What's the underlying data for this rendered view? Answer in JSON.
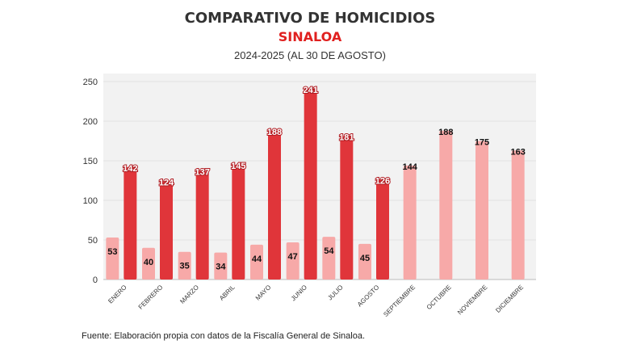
{
  "header": {
    "title": "COMPARATIVO DE HOMICIDIOS",
    "subtitle": "SINALOA",
    "period": "2024-2025 (AL 30 DE AGOSTO)"
  },
  "footer": {
    "source": "Fuente: Elaboración propia con datos de la Fiscalía General de Sinaloa."
  },
  "colors": {
    "series_2024": "#f7a9a8",
    "series_2025": "#e0353a",
    "title_red": "#e0201f",
    "plot_bg": "#f2f2f2"
  },
  "chart_data": {
    "type": "bar",
    "categories": [
      "ENERO",
      "FEBRERO",
      "MARZO",
      "ABRIL",
      "MAYO",
      "JUNIO",
      "JULIO",
      "AGOSTO",
      "SEPTIEMBRE",
      "OCTUBRE",
      "NOVIEMBRE",
      "DICIEMBRE"
    ],
    "series": [
      {
        "values": [
          53,
          40,
          35,
          34,
          44,
          47,
          54,
          45,
          144,
          188,
          175,
          163
        ]
      },
      {
        "values": [
          142,
          124,
          137,
          145,
          188,
          241,
          181,
          126,
          null,
          null,
          null,
          null
        ]
      }
    ],
    "yticks": [
      0,
      50,
      100,
      150,
      200,
      250
    ],
    "ylim": [
      0,
      250
    ],
    "grid": true,
    "legend": "none"
  }
}
